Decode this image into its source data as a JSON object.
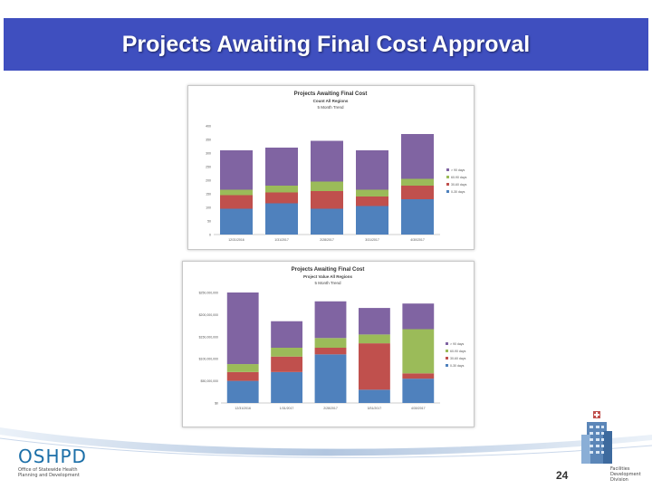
{
  "slide": {
    "title": "Projects Awaiting Final Cost Approval",
    "page_number": "24"
  },
  "footer": {
    "logo_text": "OSHPD",
    "logo_subtitle": "Office of Statewide Health Planning and Development",
    "division_label": "Facilities Development Division"
  },
  "colors": {
    "title_bar": "#3f4fbf",
    "series_0_30": "#4f81bd",
    "series_30_60": "#c0504d",
    "series_60_90": "#9bbb59",
    "series_90_plus": "#8064a2"
  },
  "chart_data": [
    {
      "type": "bar",
      "stacked": true,
      "title": "Projects Awaiting Final Cost",
      "subtitle": "Count All Regions",
      "subtitle2": "5 Month Trend",
      "categories": [
        "12/31/2016",
        "1/31/2017",
        "2/28/2017",
        "3/31/2017",
        "4/30/2017"
      ],
      "series": [
        {
          "name": "0-30 days",
          "color": "#4f81bd",
          "values": [
            95,
            115,
            95,
            105,
            130
          ]
        },
        {
          "name": "30-60 days",
          "color": "#c0504d",
          "values": [
            50,
            40,
            65,
            35,
            50
          ]
        },
        {
          "name": "60-90 days",
          "color": "#9bbb59",
          "values": [
            20,
            25,
            35,
            25,
            25
          ]
        },
        {
          "name": "> 90 days",
          "color": "#8064a2",
          "values": [
            145,
            140,
            150,
            145,
            165
          ]
        }
      ],
      "legend_order": [
        "> 90 days",
        "60-90 days",
        "30-60 days",
        "0-30 days"
      ],
      "yticks": [
        "0",
        "50",
        "100",
        "150",
        "200",
        "250",
        "300",
        "350",
        "400"
      ],
      "ylim": [
        0,
        400
      ],
      "legend": "right",
      "grid": false
    },
    {
      "type": "bar",
      "stacked": true,
      "title": "Projects Awaiting Final Cost",
      "subtitle": "Project Value All Regions",
      "subtitle2": "5 Month Trend",
      "categories": [
        "12/31/2016",
        "1/31/2017",
        "2/28/2017",
        "3/31/2017",
        "4/30/2017"
      ],
      "series": [
        {
          "name": "0-30 days",
          "color": "#4f81bd",
          "values": [
            50000000,
            70000000,
            110000000,
            30000000,
            55000000
          ]
        },
        {
          "name": "30-60 days",
          "color": "#c0504d",
          "values": [
            20000000,
            35000000,
            15000000,
            105000000,
            12000000
          ]
        },
        {
          "name": "60-90 days",
          "color": "#9bbb59",
          "values": [
            18000000,
            20000000,
            22000000,
            20000000,
            100000000
          ]
        },
        {
          "name": "> 90 days",
          "color": "#8064a2",
          "values": [
            162000000,
            60000000,
            83000000,
            60000000,
            58000000
          ]
        }
      ],
      "legend_order": [
        "> 90 days",
        "60-90 days",
        "30-60 days",
        "0-30 days"
      ],
      "yticks": [
        "$0",
        "$50,000,000",
        "$100,000,000",
        "$150,000,000",
        "$200,000,000",
        "$250,000,000"
      ],
      "ylim": [
        0,
        250000000
      ],
      "legend": "right",
      "grid": false
    }
  ]
}
